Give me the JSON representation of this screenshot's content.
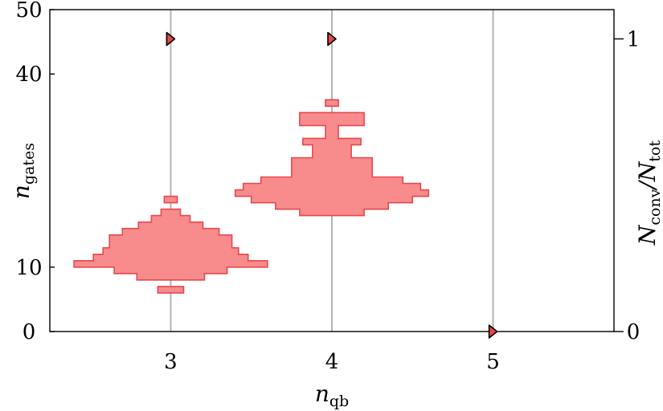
{
  "chart_data": {
    "type": "violin",
    "x_axis": {
      "label_main": "n",
      "label_sub": "qb",
      "range": [
        2.25,
        5.75
      ],
      "ticks": [
        3,
        4,
        5
      ],
      "tick_labels": [
        "3",
        "4",
        "5"
      ],
      "grid": true
    },
    "y_axis_left": {
      "label_main": "n",
      "label_sub": "gates",
      "range": [
        0,
        50
      ],
      "ticks": [
        0,
        10,
        40,
        50
      ],
      "tick_labels": [
        "0",
        "10",
        "40",
        "50"
      ]
    },
    "y_axis_right": {
      "label_main": "N",
      "label_sub": "conv",
      "label_sep": "/N",
      "label_sub2": "tot",
      "range": [
        0,
        1.1
      ],
      "ticks": [
        0,
        1
      ],
      "tick_labels": [
        "0",
        "1"
      ]
    },
    "violins": [
      {
        "x": 3,
        "bin_height": 1,
        "bins": [
          {
            "y": 6,
            "half_width": 0.08
          },
          {
            "y": 8,
            "half_width": 0.21
          },
          {
            "y": 9,
            "half_width": 0.35
          },
          {
            "y": 10,
            "half_width": 0.6
          },
          {
            "y": 11,
            "half_width": 0.48
          },
          {
            "y": 12,
            "half_width": 0.42
          },
          {
            "y": 13,
            "half_width": 0.38
          },
          {
            "y": 14,
            "half_width": 0.38
          },
          {
            "y": 15,
            "half_width": 0.3
          },
          {
            "y": 16,
            "half_width": 0.2
          },
          {
            "y": 17,
            "half_width": 0.12
          },
          {
            "y": 18,
            "half_width": 0.06
          },
          {
            "y": 20,
            "half_width": 0.04
          }
        ]
      },
      {
        "x": 4,
        "bin_height": 1,
        "bins": [
          {
            "y": 18,
            "half_width": 0.2
          },
          {
            "y": 19,
            "half_width": 0.35
          },
          {
            "y": 20,
            "half_width": 0.5
          },
          {
            "y": 21,
            "half_width": 0.6
          },
          {
            "y": 22,
            "half_width": 0.55
          },
          {
            "y": 23,
            "half_width": 0.44
          },
          {
            "y": 24,
            "half_width": 0.25
          },
          {
            "y": 25,
            "half_width": 0.25
          },
          {
            "y": 26,
            "half_width": 0.25
          },
          {
            "y": 27,
            "half_width": 0.12
          },
          {
            "y": 28,
            "half_width": 0.12
          },
          {
            "y": 29,
            "half_width": 0.18
          },
          {
            "y": 30,
            "half_width": 0.04
          },
          {
            "y": 31,
            "half_width": 0.04
          },
          {
            "y": 32,
            "half_width": 0.2
          },
          {
            "y": 33,
            "half_width": 0.2
          },
          {
            "y": 35,
            "half_width": 0.04
          }
        ]
      }
    ],
    "convergence": [
      {
        "x": 3,
        "ratio": 1
      },
      {
        "x": 4,
        "ratio": 1
      },
      {
        "x": 5,
        "ratio": 0
      }
    ],
    "colors": {
      "violin_fill": "#f88c8c",
      "violin_edge": "#e8464c",
      "marker_fill": "#e8464c",
      "grid": "#b3b3b3"
    }
  }
}
